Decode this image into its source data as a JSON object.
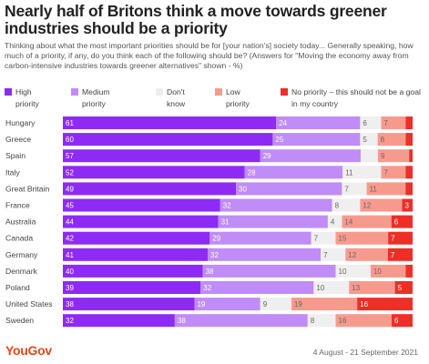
{
  "title": "Nearly half of Britons think a move towards greener industries should be a priority",
  "subtitle": "Thinking about what the most important priorities should be for [your nation's] society today... Generally speaking, how much of a priority, if any, do you think each of the following should be? (Answers for \"Moving the economy away from carbon-intensive industries towards greener alternatives\" shown - %)",
  "legend": [
    {
      "label": "High priority",
      "color": "#8d2bf5"
    },
    {
      "label": "Medium priority",
      "color": "#c08cf7"
    },
    {
      "label": "Don't know",
      "color": "#efefef"
    },
    {
      "label": "Low priority",
      "color": "#f79a8e"
    },
    {
      "label": "No priority – this should not be a goal in my country",
      "color": "#ef2e27"
    }
  ],
  "footer": {
    "logo": "YouGov",
    "date": "4 August - 21 September 2021"
  },
  "chart_data": {
    "type": "bar",
    "orientation": "horizontal",
    "stacked": true,
    "categories": [
      "Hungary",
      "Greece",
      "Spain",
      "Italy",
      "Great Britain",
      "France",
      "Australia",
      "Canada",
      "Germany",
      "Denmark",
      "Poland",
      "United States",
      "Sweden"
    ],
    "series": [
      {
        "name": "High priority",
        "color": "#8d2bf5",
        "values": [
          61,
          60,
          57,
          52,
          49,
          45,
          44,
          42,
          41,
          40,
          39,
          38,
          32
        ]
      },
      {
        "name": "Medium priority",
        "color": "#c08cf7",
        "values": [
          24,
          25,
          29,
          28,
          30,
          32,
          31,
          29,
          32,
          38,
          32,
          19,
          38
        ]
      },
      {
        "name": "Don't know",
        "color": "#efefef",
        "values": [
          6,
          5,
          5,
          11,
          7,
          8,
          4,
          7,
          7,
          10,
          10,
          9,
          8
        ]
      },
      {
        "name": "Low priority",
        "color": "#f79a8e",
        "values": [
          7,
          8,
          9,
          7,
          11,
          12,
          14,
          15,
          12,
          10,
          13,
          19,
          16
        ]
      },
      {
        "name": "No priority – this should not be a goal in my country",
        "color": "#ef2e27",
        "values": [
          2,
          2,
          1,
          2,
          2,
          3,
          6,
          7,
          7,
          2,
          5,
          16,
          6
        ]
      }
    ],
    "label_values": [
      [
        "61",
        "24",
        "6",
        "7",
        ""
      ],
      [
        "60",
        "25",
        "5",
        "8",
        ""
      ],
      [
        "57",
        "29",
        "",
        "9",
        ""
      ],
      [
        "52",
        "28",
        "11",
        "7",
        ""
      ],
      [
        "49",
        "30",
        "7",
        "11",
        ""
      ],
      [
        "45",
        "32",
        "8",
        "12",
        "3"
      ],
      [
        "44",
        "31",
        "4",
        "14",
        "6"
      ],
      [
        "42",
        "29",
        "7",
        "15",
        "7"
      ],
      [
        "41",
        "32",
        "7",
        "12",
        "7"
      ],
      [
        "40",
        "38",
        "10",
        "10",
        ""
      ],
      [
        "39",
        "32",
        "10",
        "13",
        "5"
      ],
      [
        "38",
        "19",
        "9",
        "19",
        "16"
      ],
      [
        "32",
        "38",
        "8",
        "16",
        "6"
      ]
    ],
    "xlim": [
      0,
      100
    ],
    "grid": false,
    "legend_position": "top"
  }
}
